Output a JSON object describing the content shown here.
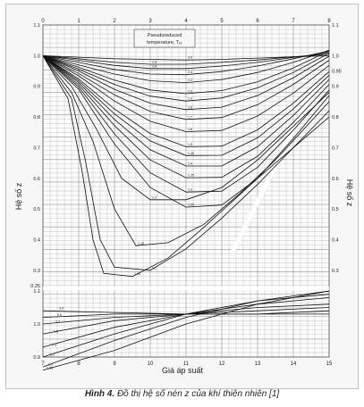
{
  "caption": {
    "label": "Hình 4.",
    "text": "Đồ thị hệ số nén z của khí thiên nhiên [1]"
  },
  "colors": {
    "background": "#f7f7f7",
    "grid": "#6d6d6d",
    "curves": "#111111",
    "axis_text": "#222222"
  },
  "chart_data": {
    "type": "line",
    "title": "",
    "xlabel": "Giá áp suất",
    "ylabel_left": "Hệ số z",
    "ylabel_right": "Hệ số z",
    "grid": true,
    "legend_box": {
      "line1": "Pseudoreduced",
      "line2": "temperature, Tₚᵣ"
    },
    "top_axis": {
      "range": [
        0,
        8
      ],
      "ticks": [
        "0",
        "1",
        "2",
        "3",
        "4",
        "5",
        "6",
        "7",
        "8"
      ]
    },
    "bottom_axis": {
      "range": [
        7,
        15
      ],
      "ticks": [
        "7",
        "8",
        "9",
        "10",
        "11",
        "12",
        "13",
        "14",
        "15"
      ]
    },
    "left_axis_upper": {
      "range": [
        0.25,
        1.1
      ],
      "ticks": [
        "1.1",
        "1.0",
        "0.9",
        "0.8",
        "0.7",
        "0.6",
        "0.5",
        "0.4",
        "0.3",
        "0.25"
      ]
    },
    "left_axis_lower": {
      "range": [
        0.9,
        1.1
      ],
      "ticks": [
        "1.1",
        "1.0",
        "0.9"
      ]
    },
    "right_axis": {
      "ticks": [
        "1.1",
        "1.0",
        "0.95",
        "0.9",
        "0.8",
        "0.7",
        "0.6",
        "0.5",
        "0.4",
        "0.3"
      ]
    },
    "series_top": [
      {
        "name": "3.0",
        "x": [
          0,
          1,
          2,
          3,
          4,
          5,
          6,
          7,
          8
        ],
        "y": [
          1.0,
          0.995,
          0.99,
          0.988,
          0.986,
          0.988,
          0.992,
          0.996,
          1.0
        ]
      },
      {
        "name": "2.8",
        "x": [
          0,
          1,
          2,
          3,
          4,
          5,
          6,
          7,
          8
        ],
        "y": [
          1.0,
          0.99,
          0.978,
          0.972,
          0.972,
          0.978,
          0.986,
          0.996,
          1.005
        ]
      },
      {
        "name": "2.6",
        "x": [
          0,
          1,
          2,
          3,
          4,
          5,
          6,
          7,
          8
        ],
        "y": [
          1.0,
          0.985,
          0.968,
          0.958,
          0.958,
          0.966,
          0.978,
          0.994,
          1.01
        ]
      },
      {
        "name": "2.4",
        "x": [
          0,
          1,
          2,
          3,
          4,
          5,
          6,
          7,
          8
        ],
        "y": [
          1.0,
          0.978,
          0.955,
          0.94,
          0.938,
          0.948,
          0.966,
          0.99,
          1.015
        ]
      },
      {
        "name": "2.2",
        "x": [
          0,
          1,
          2,
          3,
          4,
          5,
          6,
          7,
          8
        ],
        "y": [
          1.0,
          0.97,
          0.94,
          0.918,
          0.912,
          0.922,
          0.945,
          0.978,
          1.018
        ]
      },
      {
        "name": "2.0",
        "x": [
          0,
          1,
          2,
          3,
          4,
          5,
          6,
          7,
          8
        ],
        "y": [
          1.0,
          0.962,
          0.92,
          0.888,
          0.876,
          0.886,
          0.915,
          0.96,
          1.015
        ]
      },
      {
        "name": "1.9",
        "x": [
          0,
          1,
          2,
          3,
          4,
          5,
          6,
          7,
          8
        ],
        "y": [
          1.0,
          0.956,
          0.906,
          0.868,
          0.852,
          0.862,
          0.895,
          0.945,
          1.008
        ]
      },
      {
        "name": "1.8",
        "x": [
          0,
          1,
          2,
          3,
          4,
          5,
          6,
          7,
          8
        ],
        "y": [
          1.0,
          0.95,
          0.89,
          0.845,
          0.824,
          0.832,
          0.87,
          0.928,
          0.998
        ]
      },
      {
        "name": "1.7",
        "x": [
          0,
          1,
          2,
          3,
          4,
          5,
          6,
          7,
          8
        ],
        "y": [
          1.0,
          0.942,
          0.872,
          0.818,
          0.792,
          0.798,
          0.84,
          0.906,
          0.985
        ]
      },
      {
        "name": "1.6",
        "x": [
          0,
          1,
          2,
          3,
          4,
          5,
          6,
          7,
          8
        ],
        "y": [
          1.0,
          0.934,
          0.852,
          0.786,
          0.752,
          0.756,
          0.803,
          0.878,
          0.968
        ]
      },
      {
        "name": "1.5",
        "x": [
          0,
          1,
          2,
          3,
          4,
          5,
          6,
          7,
          8
        ],
        "y": [
          1.0,
          0.924,
          0.826,
          0.746,
          0.703,
          0.705,
          0.758,
          0.845,
          0.948
        ]
      },
      {
        "name": "1.45",
        "x": [
          0,
          1,
          2,
          3,
          4,
          5,
          6,
          7,
          8
        ],
        "y": [
          1.0,
          0.918,
          0.81,
          0.722,
          0.674,
          0.675,
          0.732,
          0.826,
          0.936
        ]
      },
      {
        "name": "1.4",
        "x": [
          0,
          1,
          2,
          3,
          4,
          5,
          6,
          7,
          8
        ],
        "y": [
          1.0,
          0.912,
          0.792,
          0.693,
          0.64,
          0.64,
          0.703,
          0.805,
          0.922
        ]
      },
      {
        "name": "1.35",
        "x": [
          0,
          1,
          2,
          3,
          4,
          5,
          6,
          7,
          8
        ],
        "y": [
          1.0,
          0.905,
          0.772,
          0.66,
          0.602,
          0.603,
          0.672,
          0.782,
          0.906
        ]
      },
      {
        "name": "1.3",
        "x": [
          0,
          1,
          2,
          3,
          4,
          5,
          6,
          7,
          8
        ],
        "y": [
          1.0,
          0.898,
          0.745,
          0.618,
          0.555,
          0.558,
          0.636,
          0.757,
          0.888
        ]
      },
      {
        "name": "1.25",
        "x": [
          0,
          1,
          2,
          3,
          4,
          5,
          6,
          7,
          8
        ],
        "y": [
          1.0,
          0.89,
          0.712,
          0.57,
          0.506,
          0.513,
          0.6,
          0.73,
          0.87
        ]
      },
      {
        "name": "1.2",
        "x": [
          0,
          0.8,
          1.5,
          2.2,
          3,
          4,
          5,
          6,
          7,
          8
        ],
        "y": [
          1.0,
          0.9,
          0.76,
          0.6,
          0.53,
          0.53,
          0.57,
          0.66,
          0.77,
          0.88
        ]
      },
      {
        "name": "1.15",
        "x": [
          0,
          0.8,
          1.4,
          2.0,
          2.6,
          3.5,
          4.5,
          5.5,
          6.5,
          8
        ],
        "y": [
          1.0,
          0.88,
          0.72,
          0.5,
          0.38,
          0.39,
          0.45,
          0.55,
          0.66,
          0.85
        ]
      },
      {
        "name": "1.1",
        "x": [
          0,
          0.8,
          1.2,
          1.6,
          2.0,
          3.0,
          4.0,
          5.0,
          6.0,
          8
        ],
        "y": [
          1.0,
          0.86,
          0.65,
          0.4,
          0.31,
          0.3,
          0.37,
          0.47,
          0.58,
          0.82
        ]
      },
      {
        "name": "1.05",
        "x": [
          0,
          0.7,
          1.1,
          1.4,
          1.7,
          2.5,
          3.5,
          4.5,
          6.0,
          8
        ],
        "y": [
          1.0,
          0.86,
          0.62,
          0.4,
          0.29,
          0.28,
          0.34,
          0.44,
          0.6,
          0.8
        ]
      }
    ],
    "series_bottom": [
      {
        "name": "1.05",
        "x": [
          7,
          9,
          11,
          13,
          15
        ],
        "y": [
          0.86,
          0.92,
          1.0,
          1.06,
          1.1
        ]
      },
      {
        "name": "1.1",
        "x": [
          7,
          9,
          11,
          13,
          15
        ],
        "y": [
          0.87,
          0.95,
          1.02,
          1.07,
          1.1
        ]
      },
      {
        "name": "1.2",
        "x": [
          7,
          9,
          11,
          13,
          15
        ],
        "y": [
          0.9,
          0.97,
          1.03,
          1.07,
          1.09
        ]
      },
      {
        "name": "1.3",
        "x": [
          7,
          9,
          11,
          13,
          15
        ],
        "y": [
          0.93,
          0.99,
          1.03,
          1.06,
          1.08
        ]
      },
      {
        "name": "1.5",
        "x": [
          7,
          9,
          11,
          13,
          15
        ],
        "y": [
          0.97,
          1.01,
          1.03,
          1.05,
          1.06
        ]
      },
      {
        "name": "1.7",
        "x": [
          7,
          9,
          11,
          13,
          15
        ],
        "y": [
          1.0,
          1.02,
          1.03,
          1.04,
          1.05
        ]
      },
      {
        "name": "2.0",
        "x": [
          7,
          9,
          11,
          13,
          15
        ],
        "y": [
          1.02,
          1.03,
          1.03,
          1.03,
          1.04
        ]
      },
      {
        "name": "3.0",
        "x": [
          7,
          9,
          11,
          13,
          15
        ],
        "y": [
          1.04,
          1.035,
          1.03,
          1.03,
          1.03
        ]
      }
    ]
  }
}
